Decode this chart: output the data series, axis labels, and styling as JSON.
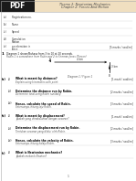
{
  "title_line1": "Theme 2: Newtonian Mechanics",
  "title_line2": "Chapter 2: Forces And Motion",
  "header_bg": "#f0dfc0",
  "page_bg": "#ffffff",
  "pdf_bg": "#1a1a1a",
  "section_number": "1",
  "section_title": "Diagram 1 shows/Bahasa from 3 to 10 at 20 seconds.",
  "section_sub": "Robin 1 is somewhere from Robin and 2 to Fireman Jones (Person)",
  "diagram_label": "Diagram 1 / Figure 1",
  "form_fields": [
    {
      "label": "(a)",
      "text": "Registration no."
    },
    {
      "label": "(b)",
      "text": "Name"
    },
    {
      "label": "(c)",
      "text": "Speed"
    },
    {
      "label": "(d)",
      "text": "Cumulation\nMotion"
    },
    {
      "label": "(e)",
      "text": "acceleration in\nForce",
      "marks": "[5 marks / soal/en]"
    }
  ],
  "questions": [
    {
      "num": "(a)",
      "sub": "(i)",
      "text": "What is meant by distance?",
      "sub2": "Explain using kinematics with point.",
      "marks": "[1 mark / soal/en]"
    },
    {
      "num": "",
      "sub": "(ii)",
      "text": "Determine the distance run by Robin.",
      "sub2": "Determine total using Robin run/daily.",
      "marks": "[2 marks / soal/en]"
    },
    {
      "num": "",
      "sub": "(iii)",
      "text": "Hence, calculate the speed of Robin.",
      "sub2": "Seterusnya, hitung laju Robin.",
      "marks": "[3 marks / soal/en]"
    },
    {
      "num": "(b)",
      "sub": "(i)",
      "text": "What is meant by displacement?",
      "sub2": "Apakah yang dimaksudkan dengan sesaran?",
      "marks": "[1 mark / soal/en]"
    },
    {
      "num": "",
      "sub": "(ii)",
      "text": "Determine the displacement run by Robin.",
      "sub2": "Tentukan sesaran yang dilalui oleh Robin.",
      "marks": "[2 marks / soal/en]"
    },
    {
      "num": "",
      "sub": "(iii)",
      "text": "Hence, calculate the velocity of Robin.",
      "sub2": "Seterusnya, hitung halaju Robin.",
      "marks": "[3 marks / soal/en]"
    },
    {
      "num": "(c)",
      "sub": "(i)",
      "text": "What is Newtonian mechanics?",
      "sub2": "Apakah mekanik Newton?",
      "marks": ""
    }
  ],
  "footer_page": "1"
}
